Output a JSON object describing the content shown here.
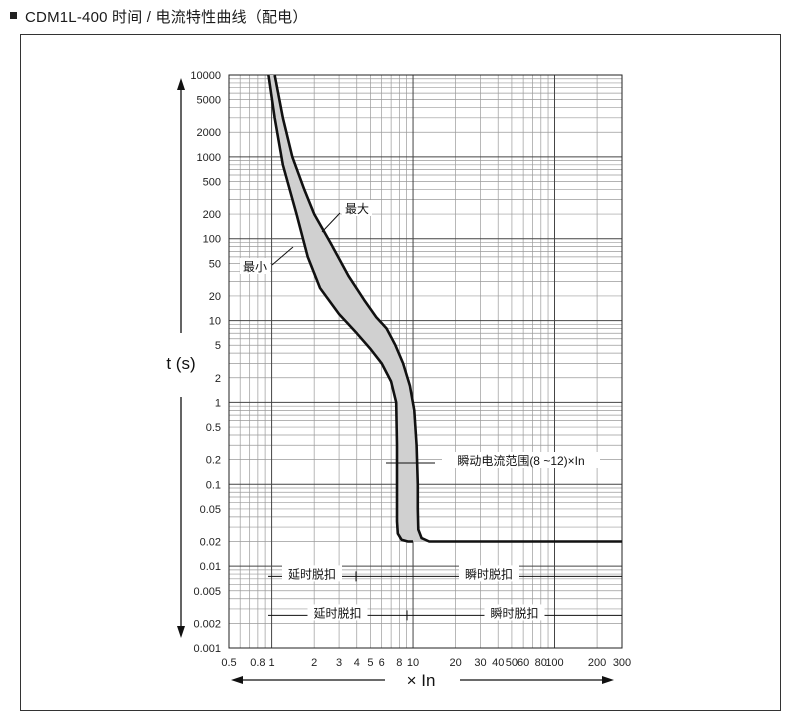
{
  "header": {
    "title": "CDM1L-400 时间 / 电流特性曲线（配电）"
  },
  "chart_data": {
    "type": "line",
    "title": "CDM1L-400 时间 / 电流特性曲线（配电）",
    "xlabel": "× In",
    "ylabel": "t (s)",
    "xscale": "log",
    "yscale": "log",
    "xlim": [
      0.5,
      300
    ],
    "ylim": [
      0.001,
      10000
    ],
    "grid": true,
    "x_tick_labels": [
      "0.5",
      "0.8",
      "1",
      "2",
      "3",
      "4",
      "5",
      "6",
      "8",
      "10",
      "20",
      "30",
      "40",
      "50",
      "60",
      "80",
      "100",
      "200",
      "300"
    ],
    "x_tick_values": [
      0.5,
      0.8,
      1,
      2,
      3,
      4,
      5,
      6,
      8,
      10,
      20,
      30,
      40,
      50,
      60,
      80,
      100,
      200,
      300
    ],
    "y_tick_labels": [
      "10000",
      "5000",
      "2000",
      "1000",
      "500",
      "200",
      "100",
      "50",
      "20",
      "10",
      "5",
      "2",
      "1",
      "0.5",
      "0.2",
      "0.1",
      "0.05",
      "0.02",
      "0.01",
      "0.005",
      "0.002",
      "0.001"
    ],
    "y_tick_values": [
      10000,
      5000,
      2000,
      1000,
      500,
      200,
      100,
      50,
      20,
      10,
      5,
      2,
      1,
      0.5,
      0.2,
      0.1,
      0.05,
      0.02,
      0.01,
      0.005,
      0.002,
      0.001
    ],
    "series": [
      {
        "name": "最大",
        "x": [
          1.05,
          1.2,
          1.4,
          1.7,
          2.0,
          2.6,
          3.5,
          4.5,
          5.5,
          6.5,
          7.5,
          8.5,
          9.5,
          10.2,
          10.6,
          10.8,
          10.8,
          10.9,
          11.5,
          13,
          300
        ],
        "y": [
          10000,
          3000,
          1000,
          400,
          200,
          90,
          35,
          18,
          11,
          8,
          5,
          3,
          1.6,
          0.8,
          0.3,
          0.1,
          0.05,
          0.028,
          0.022,
          0.02,
          0.02
        ]
      },
      {
        "name": "最小",
        "x": [
          0.95,
          1.05,
          1.2,
          1.5,
          1.8,
          2.2,
          3.0,
          4.0,
          5.0,
          6.0,
          7.0,
          7.6,
          7.7,
          7.7,
          7.8,
          8.3,
          9.2,
          10.0
        ],
        "y": [
          10000,
          3000,
          800,
          200,
          60,
          25,
          12,
          7,
          4.5,
          3,
          1.8,
          1.0,
          0.3,
          0.035,
          0.025,
          0.021,
          0.02,
          0.02
        ]
      }
    ],
    "annotations": {
      "max_label": "最大",
      "min_label": "最小",
      "instant_range": "瞬动电流范围(8 ~12)×In",
      "row1_delay": "延时脱扣",
      "row1_instant": "瞬时脱扣",
      "row2_delay": "延时脱扣",
      "row2_instant": "瞬时脱扣"
    }
  }
}
